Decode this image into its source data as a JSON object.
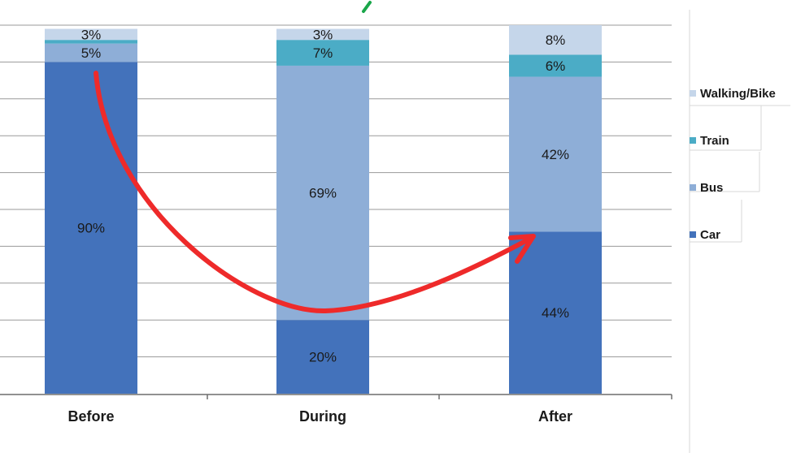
{
  "chart_data": {
    "type": "bar",
    "stacked": true,
    "categories": [
      "Before",
      "During",
      "After"
    ],
    "ylim": [
      0,
      100
    ],
    "grid": true,
    "legend_position": "right",
    "series": [
      {
        "name": "Car",
        "color": "#4372bb",
        "values": [
          90,
          20,
          44
        ],
        "labels": [
          "90%",
          "20%",
          "44%"
        ]
      },
      {
        "name": "Bus",
        "color": "#8eaed7",
        "values": [
          5,
          69,
          42
        ],
        "labels": [
          "5%",
          "69%",
          "42%"
        ]
      },
      {
        "name": "Train",
        "color": "#4bacc6",
        "values": [
          1,
          7,
          6
        ],
        "labels": [
          "",
          "7%",
          "6%"
        ]
      },
      {
        "name": "Walking/Bike",
        "color": "#c5d6ea",
        "values": [
          3,
          3,
          8
        ],
        "labels": [
          "3%",
          "3%",
          "8%"
        ]
      }
    ],
    "annotation": {
      "type": "curved-arrow",
      "color": "#ee2a2a",
      "from": "Before",
      "to": "After"
    }
  }
}
